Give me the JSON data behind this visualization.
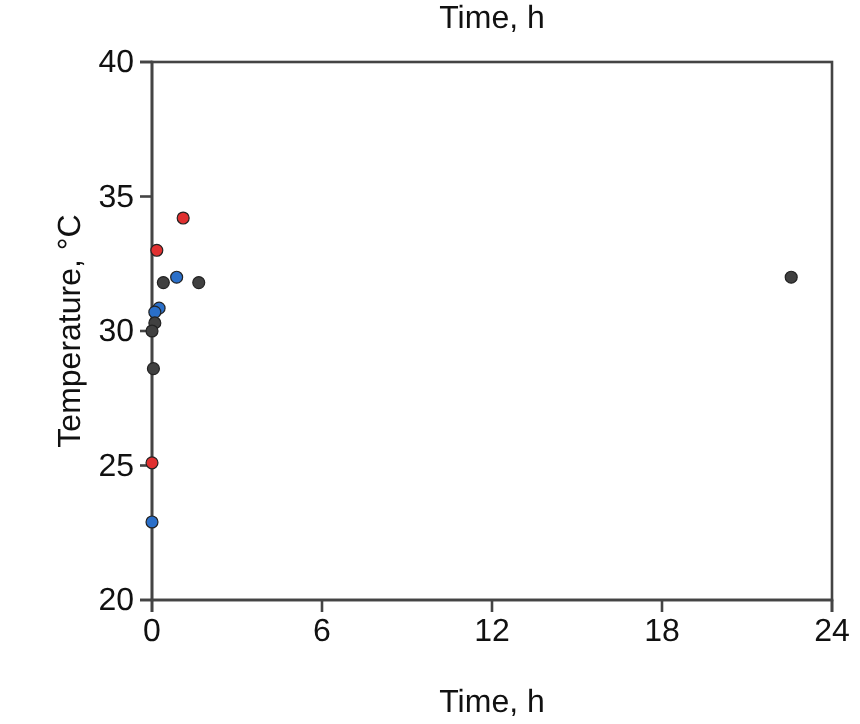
{
  "chart_data": {
    "type": "scatter",
    "xlabel": "Time, h",
    "ylabel": "Temperature, °C",
    "annotations": [
      "Time, h"
    ],
    "xlim": [
      0,
      24
    ],
    "xticks": [
      0,
      6,
      12,
      18,
      24
    ],
    "ylim": [
      20,
      40
    ],
    "yticks": [
      20,
      25,
      30,
      35,
      40
    ],
    "marker": "circle",
    "grid": false,
    "series": [
      {
        "color": "#e03030",
        "x": [
          1.1,
          0.17,
          0
        ],
        "values": [
          34.2,
          33.0,
          25.1
        ]
      },
      {
        "color": "#2a6fc9",
        "x": [
          0.87,
          0.25,
          0.1,
          0
        ],
        "values": [
          32.0,
          30.85,
          30.7,
          22.9
        ]
      },
      {
        "color": "#404040",
        "x": [
          0.4,
          1.65,
          0.1,
          0,
          0.05,
          22.56
        ],
        "values": [
          31.8,
          31.8,
          30.3,
          30.0,
          28.6,
          32.0
        ]
      }
    ]
  }
}
